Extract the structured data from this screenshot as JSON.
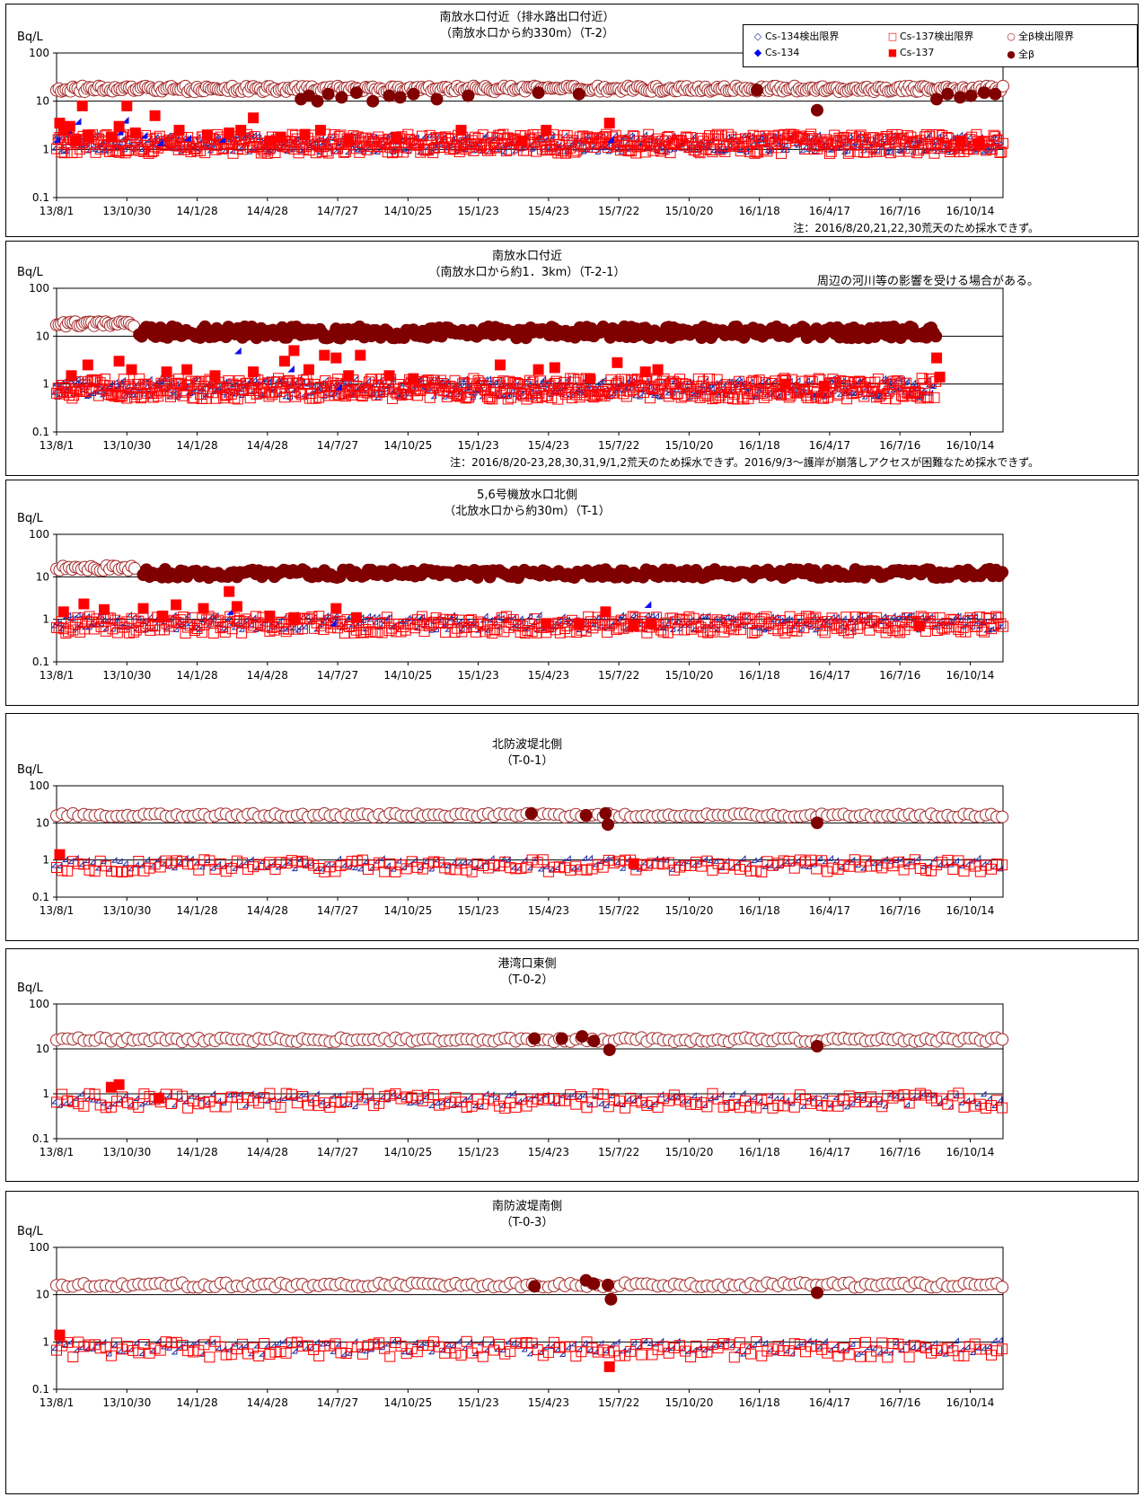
{
  "legend": [
    {
      "label": "Cs-134検出限界",
      "symbol": "◇",
      "color": "#1f2aa0"
    },
    {
      "label": "Cs-137検出限界",
      "symbol": "□",
      "color": "#ff0000"
    },
    {
      "label": "全β検出限界",
      "symbol": "○",
      "color": "#b22222"
    },
    {
      "label": "Cs-134",
      "symbol": "◆",
      "color": "#0000ff"
    },
    {
      "label": "Cs-137",
      "symbol": "■",
      "color": "#ff0000"
    },
    {
      "label": "全β",
      "symbol": "●",
      "color": "#800000"
    }
  ],
  "chart_data": [
    {
      "type": "scatter",
      "title": "南放水口付近（排水路出口付近）",
      "subtitle": "（南放水口から約330m）（T-2）",
      "ylabel": "Bq/L",
      "yscale": "log",
      "ylim": [
        0.1,
        100
      ],
      "yticks": [
        "100",
        "10",
        "1",
        "0.1"
      ],
      "xlim": [
        "2013-08-01",
        "2016-11-25"
      ],
      "xticks": [
        "13/8/1",
        "13/10/30",
        "14/1/28",
        "14/4/28",
        "14/7/27",
        "14/10/25",
        "15/1/23",
        "15/4/23",
        "15/7/22",
        "15/10/20",
        "16/1/18",
        "16/4/17",
        "16/7/16",
        "16/10/14"
      ],
      "note": "注：2016/8/20,21,22,30荒天のため採水できず。",
      "series": [
        {
          "name": "Cs-134検出限界",
          "level": 1.2,
          "spread": 0.18,
          "start": "2013-08-01",
          "end": "2016-11-25",
          "step": 2
        },
        {
          "name": "Cs-137検出限界",
          "level": 1.3,
          "spread": 0.2,
          "start": "2013-08-01",
          "end": "2016-11-25",
          "step": 2
        },
        {
          "name": "全β検出限界",
          "level": 18,
          "spread": 0.06,
          "start": "2013-08-01",
          "end": "2016-11-25",
          "step": 3
        },
        {
          "name": "Cs-134",
          "points": [
            [
              "2013-08-05",
              1.4
            ],
            [
              "2013-08-20",
              2.2
            ],
            [
              "2013-09-01",
              3.3
            ],
            [
              "2013-10-25",
              2.0
            ],
            [
              "2013-11-01",
              3.5
            ],
            [
              "2013-11-25",
              1.7
            ],
            [
              "2013-12-15",
              1.2
            ],
            [
              "2014-01-20",
              1.5
            ],
            [
              "2014-03-05",
              1.4
            ],
            [
              "2015-07-15",
              1.4
            ]
          ]
        },
        {
          "name": "Cs-137",
          "points": [
            [
              "2013-08-05",
              3.5
            ],
            [
              "2013-08-10",
              2.5
            ],
            [
              "2013-08-18",
              3.0
            ],
            [
              "2013-08-25",
              1.5
            ],
            [
              "2013-09-03",
              8.0
            ],
            [
              "2013-09-10",
              2.0
            ],
            [
              "2013-10-10",
              1.8
            ],
            [
              "2013-10-20",
              3.0
            ],
            [
              "2013-10-30",
              8.0
            ],
            [
              "2013-11-10",
              2.2
            ],
            [
              "2013-12-05",
              5.0
            ],
            [
              "2014-01-05",
              2.5
            ],
            [
              "2014-02-10",
              2.0
            ],
            [
              "2014-03-10",
              2.2
            ],
            [
              "2014-03-25",
              2.5
            ],
            [
              "2014-04-10",
              4.5
            ],
            [
              "2014-05-01",
              1.5
            ],
            [
              "2014-05-15",
              1.8
            ],
            [
              "2014-06-15",
              2.0
            ],
            [
              "2014-07-05",
              2.5
            ],
            [
              "2014-08-10",
              1.5
            ],
            [
              "2014-10-10",
              1.8
            ],
            [
              "2015-01-01",
              2.5
            ],
            [
              "2015-03-20",
              1.5
            ],
            [
              "2015-04-20",
              2.5
            ],
            [
              "2015-07-10",
              3.5
            ],
            [
              "2016-10-01",
              1.5
            ],
            [
              "2016-10-25",
              1.3
            ]
          ]
        },
        {
          "name": "全β",
          "points": [
            [
              "2014-06-10",
              11
            ],
            [
              "2014-06-20",
              13
            ],
            [
              "2014-07-01",
              10
            ],
            [
              "2014-07-15",
              14
            ],
            [
              "2014-08-01",
              12
            ],
            [
              "2014-08-20",
              15
            ],
            [
              "2014-09-10",
              10
            ],
            [
              "2014-10-01",
              13
            ],
            [
              "2014-10-15",
              12
            ],
            [
              "2014-11-01",
              14
            ],
            [
              "2014-12-01",
              11
            ],
            [
              "2015-01-10",
              13
            ],
            [
              "2015-04-10",
              15
            ],
            [
              "2015-06-01",
              14
            ],
            [
              "2016-01-15",
              17
            ],
            [
              "2016-04-01",
              6.5
            ],
            [
              "2016-09-01",
              11
            ],
            [
              "2016-09-15",
              14
            ],
            [
              "2016-10-01",
              12
            ],
            [
              "2016-10-15",
              13
            ],
            [
              "2016-11-01",
              15
            ],
            [
              "2016-11-15",
              14
            ]
          ]
        }
      ]
    },
    {
      "type": "scatter",
      "title": "南放水口付近",
      "subtitle": "（南放水口から約1．3km）（T-2-1）",
      "annotation": "周辺の河川等の影響を受ける場合がある。",
      "ylabel": "Bq/L",
      "yscale": "log",
      "ylim": [
        0.1,
        100
      ],
      "yticks": [
        "100",
        "10",
        "1",
        "0.1"
      ],
      "xlim": [
        "2013-08-01",
        "2016-11-25"
      ],
      "xticks": [
        "13/8/1",
        "13/10/30",
        "14/1/28",
        "14/4/28",
        "14/7/27",
        "14/10/25",
        "15/1/23",
        "15/4/23",
        "15/7/22",
        "15/10/20",
        "16/1/18",
        "16/4/17",
        "16/7/16",
        "16/10/14"
      ],
      "note": "注：2016/8/20-23,28,30,31,9/1,2荒天のため採水できず。2016/9/3～護岸が崩落しアクセスが困難なため採水できず。",
      "series": [
        {
          "name": "Cs-134検出限界",
          "level": 0.75,
          "spread": 0.2,
          "start": "2013-08-01",
          "end": "2016-09-01",
          "step": 2
        },
        {
          "name": "Cs-137検出限界",
          "level": 0.8,
          "spread": 0.22,
          "start": "2013-08-01",
          "end": "2016-09-01",
          "step": 2
        },
        {
          "name": "全β検出限界",
          "level": 18,
          "spread": 0.05,
          "start": "2013-08-01",
          "end": "2013-11-10",
          "step": 3
        },
        {
          "name": "全β",
          "level": 12,
          "spread": 0.12,
          "start": "2013-11-15",
          "end": "2016-09-01",
          "step": 3
        },
        {
          "name": "Cs-134",
          "points": [
            [
              "2014-03-25",
              4.3
            ],
            [
              "2014-06-01",
              1.8
            ],
            [
              "2014-08-01",
              0.75
            ]
          ]
        },
        {
          "name": "Cs-137",
          "points": [
            [
              "2013-08-20",
              1.5
            ],
            [
              "2013-09-10",
              2.5
            ],
            [
              "2013-10-20",
              3.0
            ],
            [
              "2013-11-05",
              2.0
            ],
            [
              "2013-12-20",
              1.8
            ],
            [
              "2014-01-15",
              2.0
            ],
            [
              "2014-02-20",
              1.5
            ],
            [
              "2014-04-10",
              1.8
            ],
            [
              "2014-05-20",
              3.0
            ],
            [
              "2014-06-01",
              5.0
            ],
            [
              "2014-06-20",
              2.0
            ],
            [
              "2014-07-10",
              4.0
            ],
            [
              "2014-07-25",
              3.5
            ],
            [
              "2014-08-10",
              1.5
            ],
            [
              "2014-08-25",
              4.0
            ],
            [
              "2014-10-01",
              1.5
            ],
            [
              "2014-11-01",
              1.3
            ],
            [
              "2015-02-20",
              2.5
            ],
            [
              "2015-04-10",
              2.0
            ],
            [
              "2015-05-01",
              2.2
            ],
            [
              "2015-06-15",
              1.3
            ],
            [
              "2015-07-20",
              2.8
            ],
            [
              "2015-08-25",
              1.8
            ],
            [
              "2015-09-10",
              2.0
            ],
            [
              "2016-02-20",
              1.0
            ],
            [
              "2016-04-10",
              0.9
            ],
            [
              "2016-09-01",
              3.5
            ],
            [
              "2016-09-05",
              1.4
            ]
          ]
        }
      ]
    },
    {
      "type": "scatter",
      "title": "5,6号機放水口北側",
      "subtitle": "（北放水口から約30m）（T-1）",
      "ylabel": "Bq/L",
      "yscale": "log",
      "ylim": [
        0.1,
        100
      ],
      "yticks": [
        "100",
        "10",
        "1",
        "0.1"
      ],
      "xlim": [
        "2013-08-01",
        "2016-11-25"
      ],
      "xticks": [
        "13/8/1",
        "13/10/30",
        "14/1/28",
        "14/4/28",
        "14/7/27",
        "14/10/25",
        "15/1/23",
        "15/4/23",
        "15/7/22",
        "15/10/20",
        "16/1/18",
        "16/4/17",
        "16/7/16",
        "16/10/14"
      ],
      "series": [
        {
          "name": "Cs-134検出限界",
          "level": 0.75,
          "spread": 0.18,
          "start": "2013-08-01",
          "end": "2016-11-25",
          "step": 3
        },
        {
          "name": "Cs-137検出限界",
          "level": 0.75,
          "spread": 0.2,
          "start": "2013-08-01",
          "end": "2016-11-25",
          "step": 3
        },
        {
          "name": "全β検出限界",
          "level": 16,
          "spread": 0.06,
          "start": "2013-08-01",
          "end": "2013-11-10",
          "step": 4
        },
        {
          "name": "全β",
          "level": 12,
          "spread": 0.1,
          "start": "2013-11-20",
          "end": "2016-11-25",
          "step": 4
        },
        {
          "name": "Cs-134",
          "points": [
            [
              "2013-10-01",
              1.3
            ],
            [
              "2014-03-15",
              1.3
            ],
            [
              "2014-07-25",
              0.7
            ],
            [
              "2015-09-01",
              1.9
            ]
          ]
        },
        {
          "name": "Cs-137",
          "points": [
            [
              "2013-08-10",
              1.5
            ],
            [
              "2013-09-05",
              2.3
            ],
            [
              "2013-10-01",
              1.7
            ],
            [
              "2013-11-20",
              1.8
            ],
            [
              "2013-12-15",
              1.2
            ],
            [
              "2014-01-01",
              2.2
            ],
            [
              "2014-02-05",
              1.8
            ],
            [
              "2014-03-10",
              4.5
            ],
            [
              "2014-03-20",
              2.0
            ],
            [
              "2014-05-01",
              1.2
            ],
            [
              "2014-06-01",
              1.1
            ],
            [
              "2014-07-25",
              1.8
            ],
            [
              "2014-08-20",
              1.1
            ],
            [
              "2015-04-20",
              0.8
            ],
            [
              "2015-06-01",
              0.8
            ],
            [
              "2015-07-05",
              1.5
            ],
            [
              "2015-08-10",
              0.7
            ],
            [
              "2015-09-01",
              0.8
            ],
            [
              "2016-08-10",
              0.7
            ]
          ]
        }
      ]
    },
    {
      "type": "scatter",
      "title": "北防波堤北側",
      "subtitle": "（T-0-1）",
      "ylabel": "Bq/L",
      "yscale": "log",
      "ylim": [
        0.1,
        100
      ],
      "yticks": [
        "100",
        "10",
        "1",
        "0.1"
      ],
      "xlim": [
        "2013-08-01",
        "2016-11-25"
      ],
      "xticks": [
        "13/8/1",
        "13/10/30",
        "14/1/28",
        "14/4/28",
        "14/7/27",
        "14/10/25",
        "15/1/23",
        "15/4/23",
        "15/7/22",
        "15/10/20",
        "16/1/18",
        "16/4/17",
        "16/7/16",
        "16/10/14"
      ],
      "series": [
        {
          "name": "Cs-134検出限界",
          "level": 0.7,
          "spread": 0.15,
          "start": "2013-08-01",
          "end": "2016-11-25",
          "step": 7
        },
        {
          "name": "Cs-137検出限界",
          "level": 0.7,
          "spread": 0.17,
          "start": "2013-08-01",
          "end": "2016-11-25",
          "step": 7
        },
        {
          "name": "全β検出限界",
          "level": 16,
          "spread": 0.05,
          "start": "2013-08-01",
          "end": "2016-11-25",
          "step": 7
        },
        {
          "name": "Cs-137",
          "points": [
            [
              "2013-08-05",
              1.4
            ],
            [
              "2015-08-10",
              0.8
            ]
          ]
        },
        {
          "name": "全β",
          "points": [
            [
              "2015-04-01",
              18
            ],
            [
              "2015-06-10",
              16
            ],
            [
              "2015-07-05",
              18
            ],
            [
              "2015-07-08",
              9
            ],
            [
              "2016-04-01",
              10
            ]
          ]
        }
      ]
    },
    {
      "type": "scatter",
      "title": "港湾口東側",
      "subtitle": "（T-0-2）",
      "ylabel": "Bq/L",
      "yscale": "log",
      "ylim": [
        0.1,
        100
      ],
      "yticks": [
        "100",
        "10",
        "1",
        "0.1"
      ],
      "xlim": [
        "2013-08-01",
        "2016-11-25"
      ],
      "xticks": [
        "13/8/1",
        "13/10/30",
        "14/1/28",
        "14/4/28",
        "14/7/27",
        "14/10/25",
        "15/1/23",
        "15/4/23",
        "15/7/22",
        "15/10/20",
        "16/1/18",
        "16/4/17",
        "16/7/16",
        "16/10/14"
      ],
      "series": [
        {
          "name": "Cs-134検出限界",
          "level": 0.65,
          "spread": 0.15,
          "start": "2013-08-01",
          "end": "2016-11-25",
          "step": 7
        },
        {
          "name": "Cs-137検出限界",
          "level": 0.7,
          "spread": 0.17,
          "start": "2013-08-01",
          "end": "2016-11-25",
          "step": 7
        },
        {
          "name": "全β検出限界",
          "level": 16,
          "spread": 0.05,
          "start": "2013-08-01",
          "end": "2016-11-25",
          "step": 7
        },
        {
          "name": "Cs-137",
          "points": [
            [
              "2013-10-10",
              1.4
            ],
            [
              "2013-10-20",
              1.6
            ],
            [
              "2013-12-10",
              0.8
            ]
          ]
        },
        {
          "name": "全β",
          "points": [
            [
              "2015-04-05",
              17
            ],
            [
              "2015-05-10",
              17
            ],
            [
              "2015-06-05",
              19
            ],
            [
              "2015-06-20",
              15
            ],
            [
              "2015-07-10",
              9.5
            ],
            [
              "2016-04-01",
              11.5
            ]
          ]
        }
      ]
    },
    {
      "type": "scatter",
      "title": "南防波堤南側",
      "subtitle": "（T-0-3）",
      "ylabel": "Bq/L",
      "yscale": "log",
      "ylim": [
        0.1,
        100
      ],
      "yticks": [
        "100",
        "10",
        "1",
        "0.1"
      ],
      "xlim": [
        "2013-08-01",
        "2016-11-25"
      ],
      "xticks": [
        "13/8/1",
        "13/10/30",
        "14/1/28",
        "14/4/28",
        "14/7/27",
        "14/10/25",
        "15/1/23",
        "15/4/23",
        "15/7/22",
        "15/10/20",
        "16/1/18",
        "16/4/17",
        "16/7/16",
        "16/10/14"
      ],
      "series": [
        {
          "name": "Cs-134検出限界",
          "level": 0.7,
          "spread": 0.15,
          "start": "2013-08-01",
          "end": "2016-11-25",
          "step": 7
        },
        {
          "name": "Cs-137検出限界",
          "level": 0.7,
          "spread": 0.17,
          "start": "2013-08-01",
          "end": "2016-11-25",
          "step": 7
        },
        {
          "name": "全β検出限界",
          "level": 16,
          "spread": 0.05,
          "start": "2013-08-01",
          "end": "2016-11-25",
          "step": 7
        },
        {
          "name": "Cs-137",
          "points": [
            [
              "2013-08-05",
              1.4
            ],
            [
              "2015-07-10",
              0.3
            ]
          ]
        },
        {
          "name": "全β",
          "points": [
            [
              "2015-04-05",
              15
            ],
            [
              "2015-06-10",
              20
            ],
            [
              "2015-06-20",
              17
            ],
            [
              "2015-07-08",
              16
            ],
            [
              "2015-07-12",
              8
            ],
            [
              "2016-04-01",
              11
            ]
          ]
        }
      ]
    }
  ]
}
